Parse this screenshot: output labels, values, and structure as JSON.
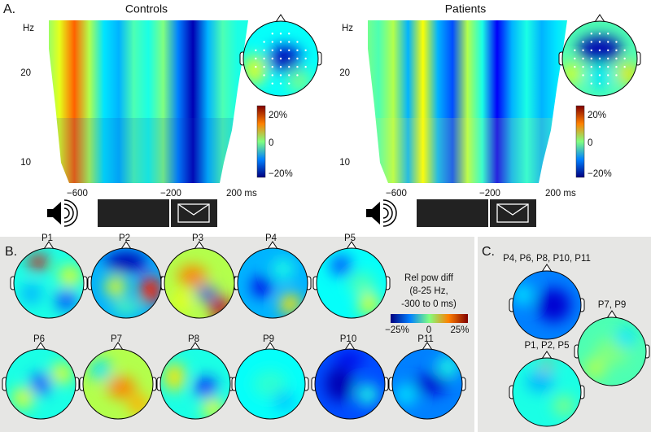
{
  "panel_a": {
    "label": "A.",
    "groups": [
      {
        "title": "Controls",
        "y_unit": "Hz",
        "y_ticks": [
          "20",
          "10"
        ],
        "x_ticks": [
          "−600",
          "−200",
          "200 ms"
        ],
        "colorbar_ticks": [
          "20%",
          "0",
          "−20%"
        ]
      },
      {
        "title": "Patients",
        "y_unit": "Hz",
        "y_ticks": [
          "20",
          "10"
        ],
        "x_ticks": [
          "−600",
          "−200",
          "200 ms"
        ],
        "colorbar_ticks": [
          "20%",
          "0",
          "−20%"
        ]
      }
    ]
  },
  "panel_b": {
    "label": "B.",
    "maps": [
      "P1",
      "P2",
      "P3",
      "P4",
      "P5",
      "P6",
      "P7",
      "P8",
      "P9",
      "P10",
      "P11"
    ],
    "legend": {
      "lines": [
        "Rel pow diff",
        "(8-25 Hz,",
        "-300 to 0 ms)"
      ],
      "ticks": [
        "−25%",
        "0",
        "25%"
      ]
    }
  },
  "panel_c": {
    "label": "C.",
    "maps": [
      "P4, P6, P8, P10, P11",
      "P7, P9",
      "P1, P2, P5"
    ]
  }
}
